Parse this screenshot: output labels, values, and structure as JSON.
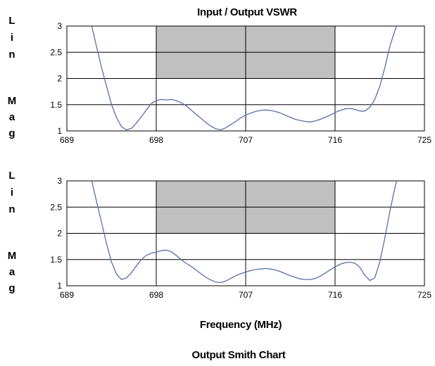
{
  "chart_title": "Input / Output VSWR",
  "x_axis_label": "Frequency (MHz)",
  "footer_title": "Output Smith Chart",
  "chart_data": [
    {
      "type": "line",
      "title": "Input / Output VSWR",
      "ylabel": "Lin Mag",
      "xlabel": "",
      "xlim": [
        689,
        725
      ],
      "ylim": [
        1,
        3
      ],
      "xticks": [
        689,
        698,
        707,
        716,
        725
      ],
      "yticks": [
        1,
        1.5,
        2,
        2.5,
        3
      ],
      "ytick_labels": [
        "1",
        "1.5",
        "2",
        "2.5",
        "3"
      ],
      "grid": true,
      "highlight_band": {
        "x": [
          698,
          716
        ],
        "y": [
          2,
          3
        ],
        "color": "#c0c0c0"
      },
      "series": [
        {
          "color": "#5b6fa8",
          "x": [
            691.5,
            692.0,
            692.5,
            693.0,
            693.5,
            694.0,
            694.5,
            695.0,
            695.5,
            696.0,
            696.5,
            697.0,
            697.5,
            698.0,
            698.5,
            699.0,
            699.5,
            700.0,
            700.5,
            701.0,
            701.5,
            702.0,
            702.5,
            703.0,
            703.5,
            704.0,
            704.5,
            705.0,
            705.5,
            706.0,
            706.5,
            707.0,
            707.5,
            708.0,
            708.5,
            709.0,
            709.5,
            710.0,
            710.5,
            711.0,
            711.5,
            712.0,
            712.5,
            713.0,
            713.5,
            714.0,
            714.5,
            715.0,
            715.5,
            716.0,
            716.5,
            717.0,
            717.5,
            718.0,
            718.5,
            719.0,
            719.5,
            720.0,
            720.5,
            721.0,
            721.5,
            722.0,
            722.2
          ],
          "y": [
            3.0,
            2.6,
            2.2,
            1.85,
            1.5,
            1.25,
            1.08,
            1.02,
            1.05,
            1.15,
            1.27,
            1.4,
            1.52,
            1.58,
            1.6,
            1.59,
            1.6,
            1.58,
            1.54,
            1.48,
            1.4,
            1.32,
            1.24,
            1.16,
            1.09,
            1.04,
            1.02,
            1.06,
            1.12,
            1.18,
            1.25,
            1.3,
            1.34,
            1.37,
            1.39,
            1.4,
            1.39,
            1.37,
            1.34,
            1.3,
            1.26,
            1.22,
            1.2,
            1.18,
            1.17,
            1.19,
            1.22,
            1.26,
            1.3,
            1.35,
            1.39,
            1.42,
            1.43,
            1.41,
            1.38,
            1.38,
            1.45,
            1.6,
            1.85,
            2.2,
            2.6,
            2.9,
            3.0
          ]
        }
      ]
    },
    {
      "type": "line",
      "title": "",
      "ylabel": "Lin Mag",
      "xlabel": "Frequency (MHz)",
      "xlim": [
        689,
        725
      ],
      "ylim": [
        1,
        3
      ],
      "xticks": [
        689,
        698,
        707,
        716,
        725
      ],
      "yticks": [
        1,
        1.5,
        2,
        2.5,
        3
      ],
      "ytick_labels": [
        "1",
        "1.5",
        "2",
        "2.5",
        "3"
      ],
      "grid": true,
      "highlight_band": {
        "x": [
          698,
          716
        ],
        "y": [
          2,
          3
        ],
        "color": "#c0c0c0"
      },
      "series": [
        {
          "color": "#5b6fa8",
          "x": [
            691.5,
            692.0,
            692.5,
            693.0,
            693.5,
            694.0,
            694.5,
            695.0,
            695.5,
            696.0,
            696.5,
            697.0,
            697.5,
            698.0,
            698.5,
            699.0,
            699.5,
            700.0,
            700.5,
            701.0,
            701.5,
            702.0,
            702.5,
            703.0,
            703.5,
            704.0,
            704.5,
            705.0,
            705.5,
            706.0,
            706.5,
            707.0,
            707.5,
            708.0,
            708.5,
            709.0,
            709.5,
            710.0,
            710.5,
            711.0,
            711.5,
            712.0,
            712.5,
            713.0,
            713.5,
            714.0,
            714.5,
            715.0,
            715.5,
            716.0,
            716.5,
            717.0,
            717.5,
            718.0,
            718.5,
            719.0,
            719.5,
            720.0,
            720.5,
            721.0,
            721.5,
            722.0,
            722.2
          ],
          "y": [
            3.0,
            2.6,
            2.2,
            1.8,
            1.45,
            1.22,
            1.12,
            1.15,
            1.25,
            1.38,
            1.5,
            1.58,
            1.62,
            1.64,
            1.67,
            1.68,
            1.65,
            1.58,
            1.5,
            1.43,
            1.37,
            1.3,
            1.23,
            1.16,
            1.11,
            1.07,
            1.06,
            1.09,
            1.14,
            1.19,
            1.23,
            1.26,
            1.29,
            1.31,
            1.32,
            1.33,
            1.32,
            1.3,
            1.27,
            1.23,
            1.19,
            1.16,
            1.13,
            1.12,
            1.12,
            1.14,
            1.18,
            1.24,
            1.3,
            1.36,
            1.41,
            1.44,
            1.45,
            1.43,
            1.35,
            1.2,
            1.1,
            1.15,
            1.45,
            1.9,
            2.4,
            2.85,
            3.0
          ]
        }
      ]
    }
  ]
}
